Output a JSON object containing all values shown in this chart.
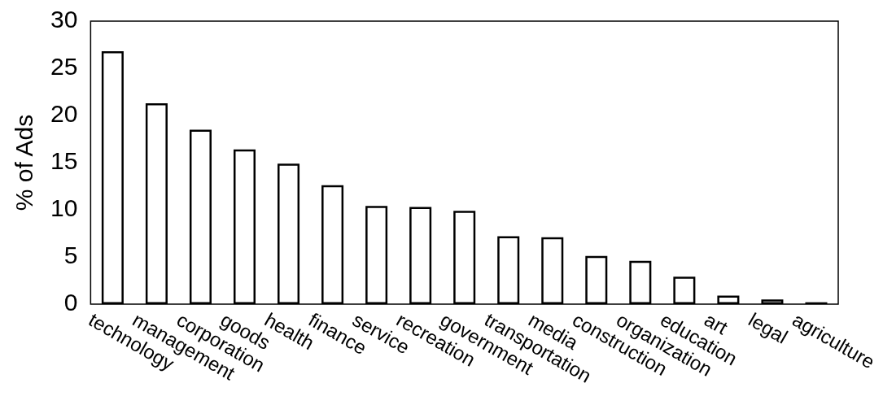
{
  "chart_data": {
    "type": "bar",
    "ylabel": "% of Ads",
    "categories": [
      "technology",
      "management",
      "corporation",
      "goods",
      "health",
      "finance",
      "service",
      "recreation",
      "government",
      "transportation",
      "media",
      "construction",
      "organization",
      "education",
      "art",
      "legal",
      "agriculture"
    ],
    "values": [
      26.8,
      21.3,
      18.5,
      16.4,
      14.9,
      12.6,
      10.4,
      10.3,
      9.9,
      7.2,
      7.1,
      5.1,
      4.6,
      2.9,
      0.9,
      0.5,
      0.2
    ],
    "color": "#000000",
    "ylim": [
      0,
      30
    ],
    "yticks": [
      0,
      5,
      10,
      15,
      20,
      25,
      30
    ],
    "grid": false,
    "legend": false
  }
}
